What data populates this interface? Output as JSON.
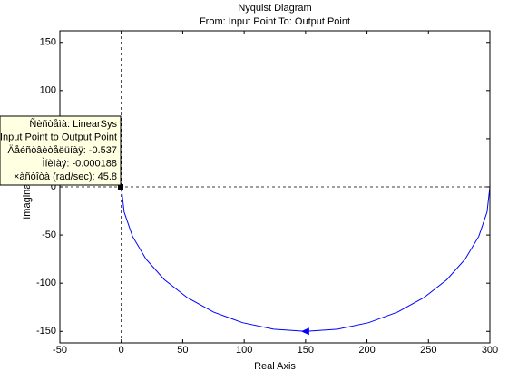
{
  "chart_data": {
    "type": "line",
    "title": "Nyquist Diagram",
    "subtitle": "From: Input Point  To: Output Point",
    "x_label": "Real Axis",
    "y_label": "Imaginary Axis",
    "series": [
      {
        "color": "#0000ff",
        "x": [
          300,
          297.7,
          291.0,
          279.9,
          264.9,
          246.4,
          225.0,
          201.3,
          176.1,
          150,
          124.0,
          98.7,
          75.0,
          53.6,
          35.1,
          20.1,
          9.1,
          2.3,
          0
        ],
        "values": [
          0,
          -26.0,
          -51.3,
          -75.0,
          -96.4,
          -114.9,
          -129.9,
          -141.0,
          -147.7,
          -150,
          -147.7,
          -141.0,
          -129.9,
          -114.9,
          -96.4,
          -75.0,
          -51.3,
          -26.0,
          0
        ]
      }
    ],
    "xlim": [
      -50,
      300
    ],
    "ylim": [
      -162,
      162
    ],
    "xticks": [
      -50,
      0,
      50,
      100,
      150,
      200,
      250,
      300
    ],
    "yticks": [
      -150,
      -100,
      -50,
      0,
      50,
      100,
      150
    ],
    "datatip": {
      "x": -0.537,
      "y": -0.000188,
      "lines": [
        "Ñèñòåìà: LinearSys",
        "Input Point to Output Point",
        "Äåéñòâèòåëüíàÿ: -0.537",
        "Ìíèìàÿ: -0.000188",
        "×àñòîòà (rad/sec): 45.8"
      ]
    }
  }
}
